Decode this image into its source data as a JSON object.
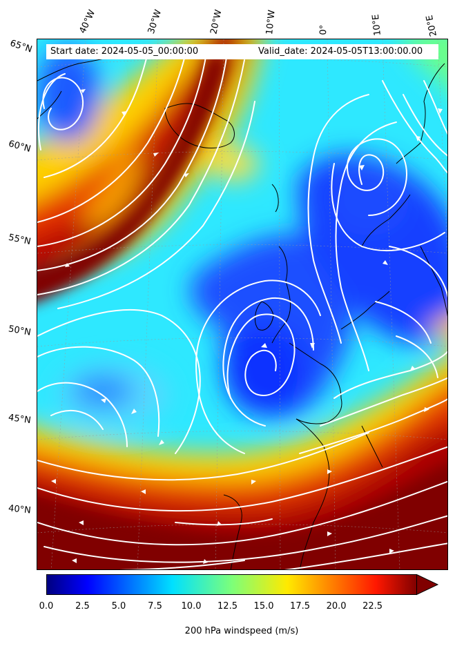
{
  "header": {
    "start_date": "Start date: 2024-05-05_00:00:00",
    "valid_date": "Valid_date: 2024-05-05T13:00:00.00"
  },
  "lon_labels": [
    "40°W",
    "30°W",
    "20°W",
    "10°W",
    "0°",
    "10°E",
    "20°E"
  ],
  "lat_labels": [
    "65°N",
    "60°N",
    "55°N",
    "50°N",
    "45°N",
    "40°N"
  ],
  "colorbar": {
    "label": "200 hPa windspeed (m/s)",
    "ticks": [
      "0.0",
      "2.5",
      "5.0",
      "7.5",
      "10.0",
      "12.5",
      "15.0",
      "17.5",
      "20.0",
      "22.5"
    ],
    "range": [
      0,
      25
    ],
    "colormap": "jet",
    "extend": "max"
  },
  "colors": {
    "max": "#800000",
    "min": "#00007f",
    "streamlines": "#ffffff",
    "coastline": "#000000"
  }
}
